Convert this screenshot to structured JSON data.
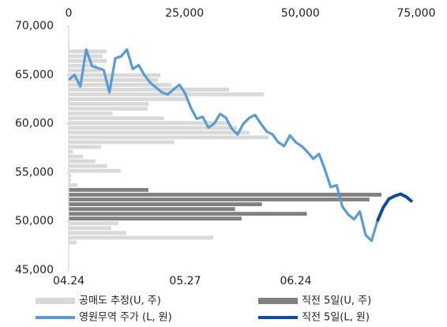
{
  "chart_data": {
    "type": "combo",
    "categories": [
      "04.24",
      null,
      null,
      null,
      null,
      null,
      null,
      null,
      null,
      null,
      null,
      null,
      null,
      null,
      null,
      null,
      null,
      null,
      null,
      null,
      "05.27",
      null,
      null,
      null,
      null,
      null,
      null,
      null,
      null,
      null,
      null,
      null,
      null,
      null,
      null,
      null,
      null,
      null,
      null,
      "06.24",
      null,
      null,
      null,
      null,
      null,
      null,
      null,
      null,
      null,
      null,
      null,
      null,
      null,
      null,
      null,
      null,
      null,
      null,
      null,
      null
    ],
    "series": [
      {
        "name": "영원무역 주가 (L, 원)",
        "color": "#5b9bd5",
        "values": [
          64500,
          65000,
          63800,
          67600,
          65900,
          65700,
          65500,
          63200,
          66700,
          66900,
          67600,
          65600,
          66000,
          65000,
          64200,
          63700,
          63200,
          63000,
          63500,
          64000,
          63100,
          61600,
          60500,
          60700,
          59600,
          60000,
          61000,
          60600,
          59500,
          58900,
          60000,
          60600,
          60900,
          60000,
          59200,
          58900,
          58100,
          57700,
          58800,
          58100,
          57700,
          57100,
          56400,
          56900,
          55300,
          53500,
          53700,
          51500,
          50700,
          50200,
          51000,
          48600,
          48000,
          50000,
          null,
          null,
          null,
          null,
          null,
          null
        ]
      },
      {
        "name": "직전 5일(L, 원)",
        "color": "#0b4f9c",
        "values": [
          null,
          null,
          null,
          null,
          null,
          null,
          null,
          null,
          null,
          null,
          null,
          null,
          null,
          null,
          null,
          null,
          null,
          null,
          null,
          null,
          null,
          null,
          null,
          null,
          null,
          null,
          null,
          null,
          null,
          null,
          null,
          null,
          null,
          null,
          null,
          null,
          null,
          null,
          null,
          null,
          null,
          null,
          null,
          null,
          null,
          null,
          null,
          null,
          null,
          null,
          null,
          null,
          null,
          50000,
          51400,
          52300,
          52600,
          52800,
          52500,
          52000
        ]
      }
    ],
    "bar_series": [
      {
        "name": "공매도 추정(U, 주)",
        "color": "#d9d9d9",
        "values": [
          200,
          8200,
          7300,
          8200,
          6000,
          7000,
          19800,
          19300,
          22200,
          34600,
          42100,
          25700,
          17200,
          17000,
          9500,
          20600,
          34600,
          36300,
          39000,
          43100,
          22800,
          7000,
          900,
          3100,
          5800,
          8300,
          11200,
          500,
          500,
          1900,
          null,
          null,
          null,
          null,
          null,
          null,
          null,
          10700,
          9200,
          12400,
          31200,
          1700
        ]
      },
      {
        "name": "직전 5일(U, 주)",
        "color": "#808080",
        "values": [
          null,
          null,
          null,
          null,
          null,
          null,
          null,
          null,
          null,
          null,
          null,
          null,
          null,
          null,
          null,
          null,
          null,
          null,
          null,
          null,
          null,
          null,
          null,
          null,
          null,
          null,
          null,
          null,
          null,
          null,
          17200,
          67500,
          64900,
          41700,
          35900,
          51400,
          37300,
          null,
          null,
          null,
          null,
          null
        ]
      }
    ],
    "ylim": [
      45000,
      70000
    ],
    "yticks": [
      {
        "value": 45000,
        "label": "45,000"
      },
      {
        "value": 50000,
        "label": "50,000"
      },
      {
        "value": 55000,
        "label": "55,000"
      },
      {
        "value": 60000,
        "label": "60,000"
      },
      {
        "value": 65000,
        "label": "65,000"
      },
      {
        "value": 70000,
        "label": "70,000"
      }
    ],
    "x2lim": [
      0,
      75000
    ],
    "x2ticks": [
      0,
      {
        "value": 25000,
        "label": "25,000"
      },
      {
        "value": 50000,
        "label": "50,000"
      },
      {
        "value": 75000,
        "label": "75,000"
      }
    ],
    "grid": false
  }
}
